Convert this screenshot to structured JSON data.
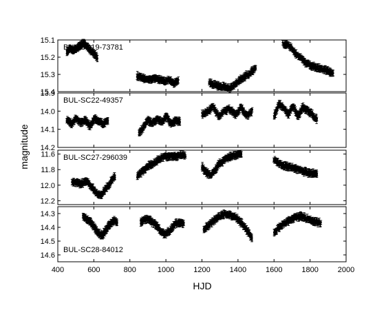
{
  "chart_data": {
    "type": "scatter",
    "xlabel": "HJD",
    "ylabel": "magnitude",
    "x_range": [
      400,
      2000
    ],
    "x_ticks": [
      400,
      600,
      800,
      1000,
      1200,
      1400,
      1600,
      1800,
      2000
    ],
    "error_bars": true,
    "y_axis_inverted": true,
    "panels": [
      {
        "label": "BUL-SC19-73781",
        "ylim": [
          15.1,
          15.4
        ],
        "y_ticks": [
          "15.1",
          "15.2",
          "15.3",
          "15.4"
        ],
        "segments": [
          {
            "x0": 450,
            "x1": 620,
            "y": [
              15.17,
              15.15,
              15.16,
              15.15,
              15.13,
              15.12,
              15.14,
              15.16,
              15.18,
              15.2
            ]
          },
          {
            "x0": 840,
            "x1": 1070,
            "y": [
              15.31,
              15.32,
              15.33,
              15.33,
              15.32,
              15.33,
              15.34,
              15.33,
              15.35,
              15.34
            ]
          },
          {
            "x0": 1240,
            "x1": 1500,
            "y": [
              15.35,
              15.36,
              15.37,
              15.37,
              15.38,
              15.36,
              15.33,
              15.31,
              15.29,
              15.26
            ]
          },
          {
            "x0": 1650,
            "x1": 1930,
            "y": [
              15.12,
              15.13,
              15.17,
              15.2,
              15.23,
              15.25,
              15.26,
              15.27,
              15.28,
              15.29
            ]
          }
        ]
      },
      {
        "label": "BUL-SC22-49357",
        "ylim": [
          13.9,
          14.2
        ],
        "y_ticks": [
          "13.9",
          "14.0",
          "14.1",
          "14.2"
        ],
        "segments": [
          {
            "x0": 450,
            "x1": 680,
            "y": [
              14.05,
              14.07,
              14.04,
              14.06,
              14.05,
              14.08,
              14.04,
              14.06,
              14.07,
              14.05
            ]
          },
          {
            "x0": 850,
            "x1": 1080,
            "y": [
              14.12,
              14.09,
              14.05,
              14.07,
              14.04,
              14.06,
              14.03,
              14.07,
              14.05,
              14.06
            ]
          },
          {
            "x0": 1200,
            "x1": 1480,
            "y": [
              14.02,
              14.0,
              13.98,
              14.03,
              14.0,
              13.99,
              14.02,
              13.98,
              14.03,
              14.0
            ]
          },
          {
            "x0": 1600,
            "x1": 1840,
            "y": [
              14.03,
              13.96,
              13.98,
              14.02,
              13.97,
              14.03,
              13.98,
              14.0,
              14.02,
              14.05
            ]
          }
        ]
      },
      {
        "label": "BUL-SC27-296039",
        "ylim": [
          11.55,
          12.25
        ],
        "y_ticks": [
          "11.6",
          "11.8",
          "12.0",
          "12.2"
        ],
        "segments": [
          {
            "x0": 480,
            "x1": 720,
            "y": [
              11.95,
              11.97,
              11.98,
              11.95,
              12.02,
              12.1,
              12.13,
              12.05,
              11.96,
              11.88
            ]
          },
          {
            "x0": 840,
            "x1": 1110,
            "y": [
              11.88,
              11.82,
              11.76,
              11.72,
              11.67,
              11.64,
              11.62,
              11.63,
              11.61,
              11.62
            ]
          },
          {
            "x0": 1200,
            "x1": 1420,
            "y": [
              11.76,
              11.84,
              11.88,
              11.8,
              11.72,
              11.68,
              11.64,
              11.62,
              11.61,
              11.6
            ]
          },
          {
            "x0": 1600,
            "x1": 1840,
            "y": [
              11.68,
              11.72,
              11.75,
              11.76,
              11.78,
              11.8,
              11.82,
              11.84,
              11.85,
              11.85
            ]
          }
        ]
      },
      {
        "label": "BUL-SC28-84012",
        "ylim": [
          14.25,
          14.65
        ],
        "y_ticks": [
          "14.3",
          "14.4",
          "14.5",
          "14.6"
        ],
        "segments": [
          {
            "x0": 540,
            "x1": 730,
            "y": [
              14.32,
              14.34,
              14.36,
              14.4,
              14.44,
              14.46,
              14.42,
              14.38,
              14.35,
              14.36
            ]
          },
          {
            "x0": 860,
            "x1": 1100,
            "y": [
              14.36,
              14.34,
              14.35,
              14.38,
              14.42,
              14.45,
              14.43,
              14.38,
              14.36,
              14.38
            ]
          },
          {
            "x0": 1210,
            "x1": 1480,
            "y": [
              14.42,
              14.38,
              14.35,
              14.32,
              14.3,
              14.31,
              14.33,
              14.37,
              14.42,
              14.48
            ]
          },
          {
            "x0": 1600,
            "x1": 1860,
            "y": [
              14.44,
              14.4,
              14.37,
              14.35,
              14.33,
              14.32,
              14.33,
              14.35,
              14.36,
              14.37
            ]
          }
        ]
      }
    ]
  }
}
